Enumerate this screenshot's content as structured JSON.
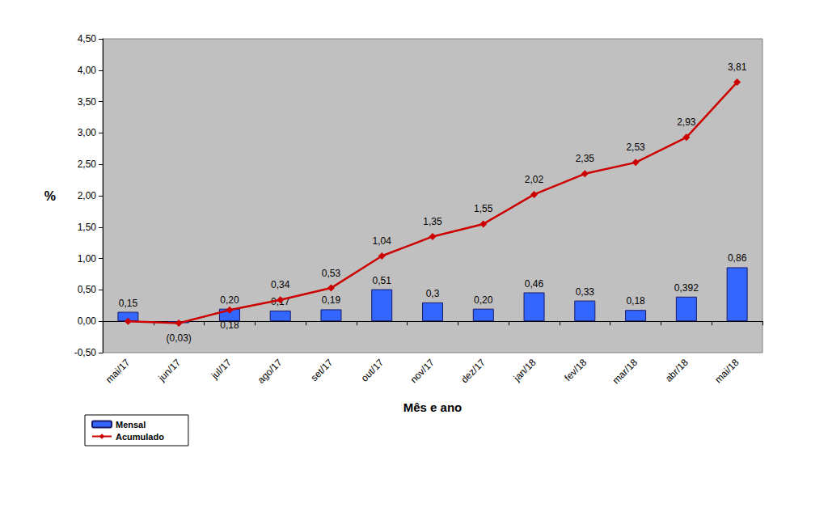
{
  "chart_data": {
    "type": "bar",
    "x_label": "Mês e ano",
    "y_label": "%",
    "categories": [
      "mai/17",
      "jun/17",
      "jul/17",
      "ago/17",
      "set/17",
      "out/17",
      "nov/17",
      "dez/17",
      "jan/18",
      "fev/18",
      "mar/18",
      "abr/18",
      "mai/18"
    ],
    "series": [
      {
        "name": "Mensal",
        "type": "bar",
        "color": "#3366ff",
        "values": [
          0.15,
          -0.03,
          0.2,
          0.17,
          0.19,
          0.51,
          0.3,
          0.2,
          0.46,
          0.33,
          0.18,
          0.392,
          0.86
        ],
        "value_labels": [
          "0,15",
          null,
          "0,20",
          "0,17",
          "0,19",
          "0,51",
          "0,3",
          "0,20",
          "0,46",
          "0,33",
          "0,18",
          "0,392",
          "0,86"
        ]
      },
      {
        "name": "Acumulado",
        "type": "line",
        "color": "#cc0000",
        "marker": "diamond",
        "values": [
          0,
          -0.03,
          0.18,
          0.34,
          0.53,
          1.04,
          1.35,
          1.55,
          2.02,
          2.35,
          2.53,
          2.93,
          3.81
        ],
        "value_labels": [
          null,
          "(0,03)",
          "0,18",
          "0,34",
          "0,53",
          "1,04",
          "1,35",
          "1,55",
          "2,02",
          "2,35",
          "2,53",
          "2,93",
          "3,81"
        ]
      }
    ],
    "ylim": [
      -0.5,
      4.5
    ],
    "yticks": [
      {
        "value": -0.5,
        "label": "-0,50"
      },
      {
        "value": 0,
        "label": "0,00"
      },
      {
        "value": 0.5,
        "label": "0,50"
      },
      {
        "value": 1,
        "label": "1,00"
      },
      {
        "value": 1.5,
        "label": "1,50"
      },
      {
        "value": 2,
        "label": "2,00"
      },
      {
        "value": 2.5,
        "label": "2,50"
      },
      {
        "value": 3,
        "label": "3,00"
      },
      {
        "value": 3.5,
        "label": "3,50"
      },
      {
        "value": 4,
        "label": "4,00"
      },
      {
        "value": 4.5,
        "label": "4,50"
      }
    ],
    "grid": false,
    "legend": "lower left",
    "data_labels": true
  }
}
